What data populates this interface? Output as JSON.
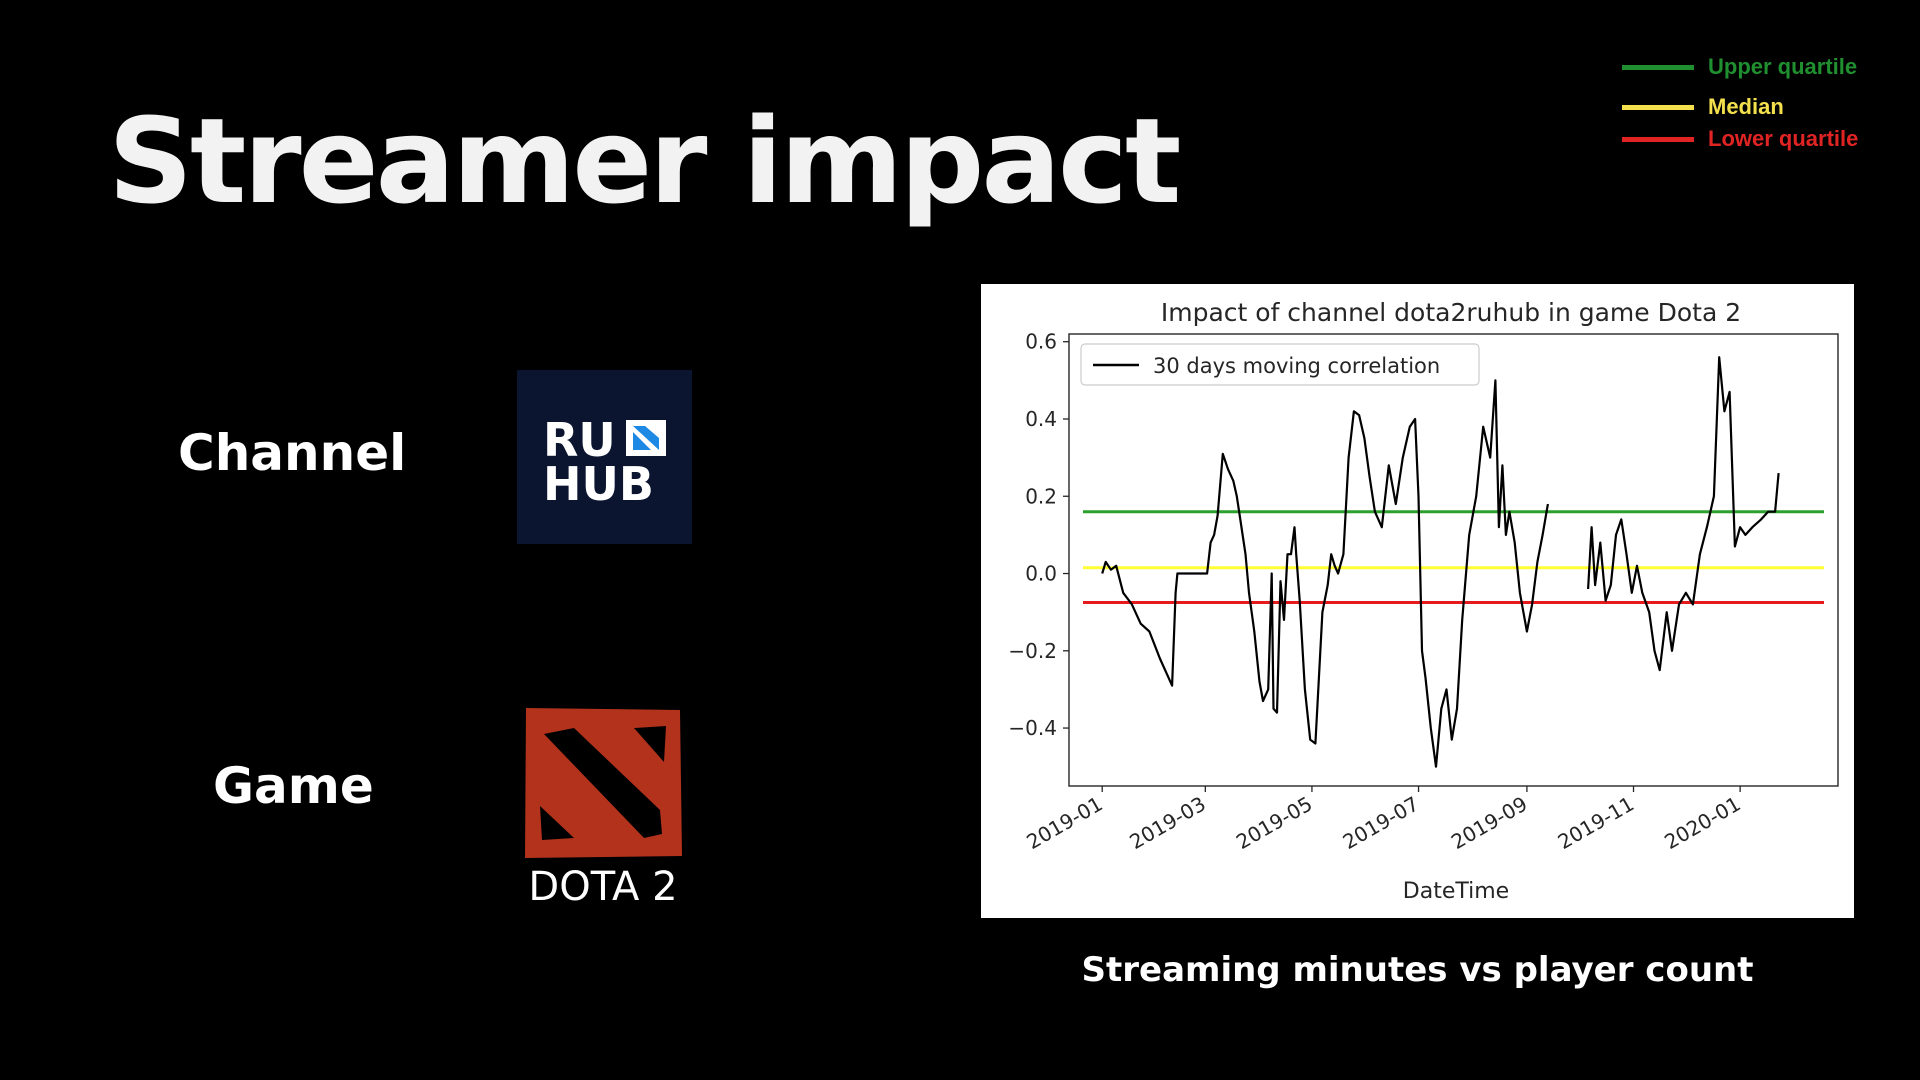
{
  "slide": {
    "title": "Streamer impact",
    "channel_label": "Channel",
    "game_label": "Game",
    "caption": "Streaming minutes vs player count"
  },
  "logos": {
    "ruhub_line1": "RU",
    "ruhub_line2": "HUB",
    "dota_text": "DOTA 2"
  },
  "outer_legend": {
    "upper": {
      "label": "Upper quartile",
      "color": "#1f8f2f"
    },
    "median": {
      "label": "Median",
      "color": "#f4e04d"
    },
    "lower": {
      "label": "Lower quartile",
      "color": "#e02424"
    }
  },
  "chart_data": {
    "type": "line",
    "title": "Impact of channel dota2ruhub in game Dota 2",
    "xlabel": "DateTime",
    "ylabel": "",
    "x_ticks": [
      "2019-01",
      "2019-03",
      "2019-05",
      "2019-07",
      "2019-09",
      "2019-11",
      "2020-01"
    ],
    "y_ticks": [
      "0.6",
      "0.4",
      "0.2",
      "0.0",
      "−0.2",
      "−0.4"
    ],
    "y_tick_values": [
      0.6,
      0.4,
      0.2,
      0.0,
      -0.2,
      -0.4
    ],
    "ylim": [
      -0.55,
      0.62
    ],
    "xlim": [
      "2018-12-13",
      "2020-02-26"
    ],
    "legend": {
      "label": "30 days moving correlation",
      "position": "upper-left"
    },
    "grid": false,
    "series": [
      {
        "name": "30 days moving correlation",
        "color": "#000000",
        "segments": [
          [
            [
              "2019-01-01",
              0.0
            ],
            [
              "2019-01-03",
              0.03
            ],
            [
              "2019-01-06",
              0.01
            ],
            [
              "2019-01-09",
              0.02
            ],
            [
              "2019-01-13",
              -0.05
            ],
            [
              "2019-01-18",
              -0.08
            ],
            [
              "2019-01-23",
              -0.13
            ],
            [
              "2019-01-28",
              -0.15
            ],
            [
              "2019-02-03",
              -0.22
            ],
            [
              "2019-02-08",
              -0.27
            ],
            [
              "2019-02-10",
              -0.29
            ],
            [
              "2019-02-12",
              -0.05
            ],
            [
              "2019-02-13",
              0.0
            ],
            [
              "2019-02-18",
              0.0
            ],
            [
              "2019-02-25",
              0.0
            ],
            [
              "2019-03-02",
              0.0
            ],
            [
              "2019-03-04",
              0.08
            ],
            [
              "2019-03-06",
              0.1
            ],
            [
              "2019-03-08",
              0.15
            ],
            [
              "2019-03-11",
              0.31
            ],
            [
              "2019-03-14",
              0.27
            ],
            [
              "2019-03-17",
              0.24
            ],
            [
              "2019-03-19",
              0.2
            ],
            [
              "2019-03-21",
              0.14
            ],
            [
              "2019-03-24",
              0.05
            ],
            [
              "2019-03-26",
              -0.05
            ],
            [
              "2019-03-29",
              -0.15
            ],
            [
              "2019-04-01",
              -0.28
            ],
            [
              "2019-04-03",
              -0.33
            ],
            [
              "2019-04-06",
              -0.3
            ],
            [
              "2019-04-08",
              0.0
            ],
            [
              "2019-04-09",
              -0.35
            ],
            [
              "2019-04-11",
              -0.36
            ],
            [
              "2019-04-13",
              -0.02
            ],
            [
              "2019-04-15",
              -0.12
            ],
            [
              "2019-04-17",
              0.05
            ],
            [
              "2019-04-19",
              0.05
            ],
            [
              "2019-04-21",
              0.12
            ],
            [
              "2019-04-22",
              0.05
            ],
            [
              "2019-04-24",
              -0.07
            ],
            [
              "2019-04-27",
              -0.3
            ],
            [
              "2019-04-30",
              -0.43
            ],
            [
              "2019-05-03",
              -0.44
            ],
            [
              "2019-05-07",
              -0.1
            ],
            [
              "2019-05-10",
              -0.03
            ],
            [
              "2019-05-12",
              0.05
            ],
            [
              "2019-05-14",
              0.02
            ],
            [
              "2019-05-16",
              0.0
            ],
            [
              "2019-05-19",
              0.05
            ],
            [
              "2019-05-22",
              0.3
            ],
            [
              "2019-05-25",
              0.42
            ],
            [
              "2019-05-28",
              0.41
            ],
            [
              "2019-05-31",
              0.35
            ],
            [
              "2019-06-03",
              0.25
            ],
            [
              "2019-06-06",
              0.16
            ],
            [
              "2019-06-10",
              0.12
            ],
            [
              "2019-06-14",
              0.28
            ],
            [
              "2019-06-18",
              0.18
            ],
            [
              "2019-06-22",
              0.3
            ],
            [
              "2019-06-26",
              0.38
            ],
            [
              "2019-06-29",
              0.4
            ],
            [
              "2019-07-01",
              0.2
            ],
            [
              "2019-07-03",
              -0.2
            ],
            [
              "2019-07-05",
              -0.27
            ],
            [
              "2019-07-08",
              -0.4
            ],
            [
              "2019-07-11",
              -0.5
            ],
            [
              "2019-07-14",
              -0.35
            ],
            [
              "2019-07-17",
              -0.3
            ],
            [
              "2019-07-20",
              -0.43
            ],
            [
              "2019-07-23",
              -0.35
            ],
            [
              "2019-07-26",
              -0.12
            ],
            [
              "2019-07-30",
              0.1
            ],
            [
              "2019-08-03",
              0.2
            ],
            [
              "2019-08-07",
              0.38
            ],
            [
              "2019-08-11",
              0.3
            ],
            [
              "2019-08-14",
              0.5
            ],
            [
              "2019-08-16",
              0.12
            ],
            [
              "2019-08-18",
              0.28
            ],
            [
              "2019-08-20",
              0.1
            ],
            [
              "2019-08-22",
              0.16
            ],
            [
              "2019-08-25",
              0.08
            ],
            [
              "2019-08-28",
              -0.05
            ],
            [
              "2019-09-01",
              -0.15
            ],
            [
              "2019-09-04",
              -0.08
            ],
            [
              "2019-09-07",
              0.03
            ],
            [
              "2019-09-10",
              0.1
            ],
            [
              "2019-09-13",
              0.18
            ]
          ],
          [
            [
              "2019-10-06",
              -0.04
            ],
            [
              "2019-10-08",
              0.12
            ],
            [
              "2019-10-10",
              -0.03
            ],
            [
              "2019-10-13",
              0.08
            ],
            [
              "2019-10-16",
              -0.07
            ],
            [
              "2019-10-19",
              -0.03
            ],
            [
              "2019-10-22",
              0.1
            ],
            [
              "2019-10-25",
              0.14
            ],
            [
              "2019-10-28",
              0.05
            ],
            [
              "2019-10-31",
              -0.05
            ],
            [
              "2019-11-03",
              0.02
            ],
            [
              "2019-11-06",
              -0.05
            ],
            [
              "2019-11-10",
              -0.1
            ],
            [
              "2019-11-13",
              -0.2
            ],
            [
              "2019-11-16",
              -0.25
            ],
            [
              "2019-11-20",
              -0.1
            ],
            [
              "2019-11-23",
              -0.2
            ],
            [
              "2019-11-27",
              -0.08
            ],
            [
              "2019-12-01",
              -0.05
            ],
            [
              "2019-12-05",
              -0.08
            ],
            [
              "2019-12-09",
              0.05
            ],
            [
              "2019-12-13",
              0.12
            ],
            [
              "2019-12-17",
              0.2
            ],
            [
              "2019-12-20",
              0.56
            ],
            [
              "2019-12-23",
              0.42
            ],
            [
              "2019-12-26",
              0.47
            ],
            [
              "2019-12-29",
              0.07
            ],
            [
              "2020-01-01",
              0.12
            ],
            [
              "2020-01-04",
              0.1
            ],
            [
              "2020-01-08",
              0.12
            ],
            [
              "2020-01-13",
              0.14
            ],
            [
              "2020-01-17",
              0.16
            ],
            [
              "2020-01-21",
              0.16
            ],
            [
              "2020-01-23",
              0.26
            ]
          ]
        ]
      }
    ],
    "reference_lines": [
      {
        "name": "Upper quartile",
        "y": 0.16,
        "color": "#2ca02c"
      },
      {
        "name": "Median",
        "y": 0.015,
        "color": "#ffff33"
      },
      {
        "name": "Lower quartile",
        "y": -0.075,
        "color": "#e41a1c"
      }
    ]
  }
}
